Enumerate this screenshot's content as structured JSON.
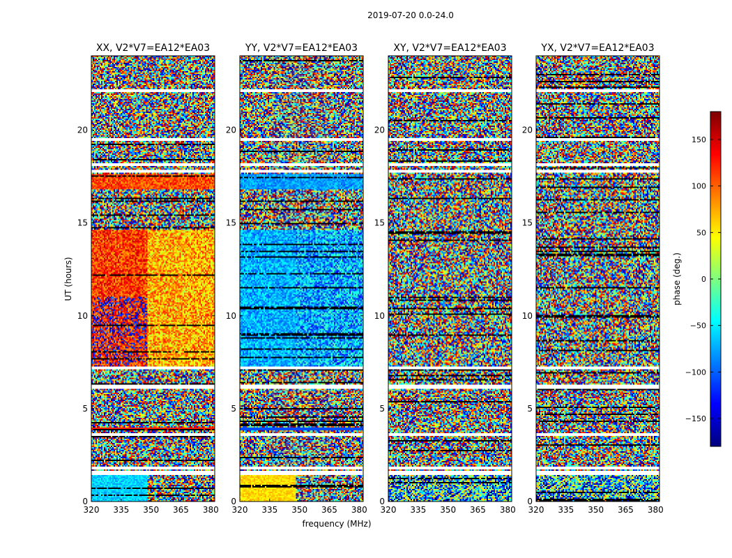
{
  "chart_data": {
    "type": "heatmap",
    "title": "2019-07-20 0.0-24.0",
    "xlabel": "frequency (MHz)",
    "ylabel": "UT (hours)",
    "xlim": [
      320,
      382
    ],
    "ylim": [
      0,
      24
    ],
    "x_ticks": [
      320,
      335,
      350,
      365,
      380
    ],
    "y_ticks": [
      0,
      5,
      10,
      15,
      20
    ],
    "panels": [
      {
        "title": "XX, V2*V7=EA12*EA03",
        "pattern": "XX"
      },
      {
        "title": "YY, V2*V7=EA12*EA03",
        "pattern": "YY"
      },
      {
        "title": "XY, V2*V7=EA12*EA03",
        "pattern": "noise"
      },
      {
        "title": "YX, V2*V7=EA12*EA03",
        "pattern": "noise"
      }
    ],
    "colorbar": {
      "label": "phase (deg.)",
      "range": [
        -180,
        180
      ],
      "ticks": [
        150,
        100,
        50,
        0,
        -50,
        -100,
        -150
      ],
      "tick_labels": [
        "150",
        "100",
        "50",
        "0",
        "−50",
        "−100",
        "−150"
      ],
      "colormap": [
        "#00007f",
        "#0000ff",
        "#007fff",
        "#00ffff",
        "#7fff7f",
        "#ffff00",
        "#ff7f00",
        "#ff0000",
        "#7f0000"
      ]
    },
    "blank_bands_hours": [
      [
        1.45,
        1.65
      ],
      [
        1.75,
        1.85
      ],
      [
        3.55,
        3.7
      ],
      [
        6.1,
        6.3
      ],
      [
        7.1,
        7.3
      ],
      [
        17.7,
        17.85
      ],
      [
        18.1,
        18.25
      ],
      [
        19.45,
        19.55
      ],
      [
        22.05,
        22.2
      ]
    ]
  }
}
